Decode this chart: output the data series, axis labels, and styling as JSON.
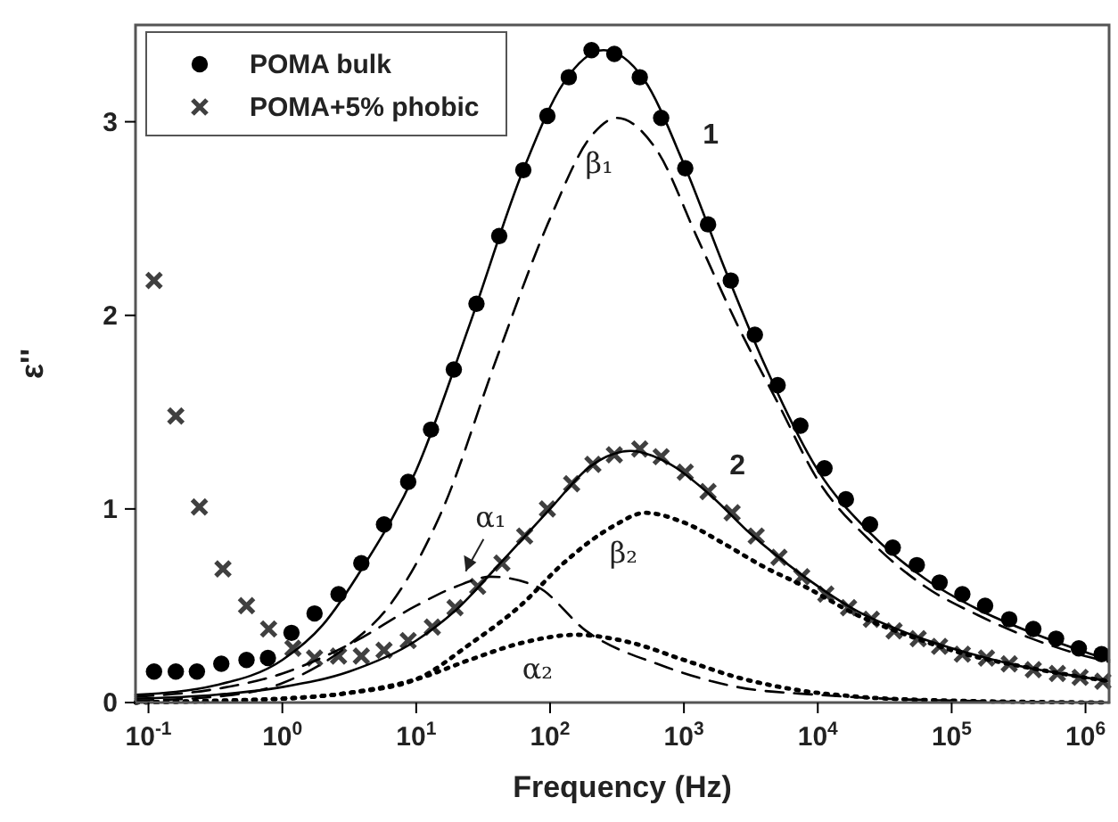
{
  "chart_data": {
    "type": "scatter",
    "xlabel": "Frequency (Hz)",
    "ylabel": "ε''",
    "log": "x",
    "grid": false,
    "legend": "top left",
    "xlim": [
      0.08,
      1500000.0
    ],
    "ylim": [
      0,
      3.5
    ],
    "xticks": [
      {
        "value": 0.1,
        "label": "10$^{-1}$"
      },
      {
        "value": 1,
        "label": "10$^{0}$"
      },
      {
        "value": 10,
        "label": "10$^{1}$"
      },
      {
        "value": 100,
        "label": "10$^{2}$"
      },
      {
        "value": 1000,
        "label": "10$^{3}$"
      },
      {
        "value": 10000,
        "label": "10$^{4}$"
      },
      {
        "value": 100000,
        "label": "10$^{5}$"
      },
      {
        "value": 1000000,
        "label": "10$^{6}$"
      }
    ],
    "yticks": [
      0,
      1,
      2,
      3
    ],
    "series": [
      {
        "name": "POMA bulk",
        "marker": "circle",
        "color": "#000000",
        "x": [
          0.11,
          0.16,
          0.23,
          0.35,
          0.54,
          0.78,
          1.17,
          1.74,
          2.63,
          3.89,
          5.75,
          8.71,
          12.9,
          19.1,
          28.2,
          41.7,
          63.1,
          95.5,
          138,
          204,
          302,
          468,
          676,
          1023,
          1514,
          2239,
          3388,
          5012,
          7413,
          11220,
          16218,
          24547,
          36308,
          54954,
          81283,
          120226,
          177828,
          269153,
          407380,
          602560,
          891251,
          1318257
        ],
        "values": [
          0.16,
          0.16,
          0.16,
          0.2,
          0.22,
          0.23,
          0.36,
          0.46,
          0.56,
          0.72,
          0.92,
          1.14,
          1.41,
          1.72,
          2.06,
          2.41,
          2.75,
          3.03,
          3.23,
          3.37,
          3.35,
          3.23,
          3.02,
          2.76,
          2.47,
          2.18,
          1.9,
          1.64,
          1.43,
          1.21,
          1.05,
          0.92,
          0.8,
          0.71,
          0.62,
          0.56,
          0.5,
          0.43,
          0.38,
          0.33,
          0.28,
          0.25
        ]
      },
      {
        "name": "POMA+5% phobic",
        "marker": "cross",
        "color": "#404040",
        "x": [
          0.11,
          0.16,
          0.24,
          0.36,
          0.54,
          0.79,
          1.2,
          1.74,
          2.63,
          3.89,
          5.75,
          8.71,
          13.2,
          19.5,
          28.8,
          43.7,
          64.6,
          95.5,
          145,
          209,
          302,
          468,
          676,
          1023,
          1514,
          2291,
          3467,
          5129,
          7586,
          11482,
          16982,
          25119,
          37154,
          56234,
          81283,
          120226,
          182000,
          269153,
          407380,
          616595,
          912011,
          1348963
        ],
        "values": [
          2.18,
          1.48,
          1.01,
          0.69,
          0.5,
          0.38,
          0.28,
          0.23,
          0.24,
          0.24,
          0.27,
          0.32,
          0.39,
          0.49,
          0.6,
          0.72,
          0.86,
          1.0,
          1.13,
          1.23,
          1.28,
          1.31,
          1.27,
          1.19,
          1.09,
          0.98,
          0.86,
          0.75,
          0.65,
          0.56,
          0.49,
          0.43,
          0.37,
          0.33,
          0.29,
          0.25,
          0.23,
          0.2,
          0.17,
          0.15,
          0.13,
          0.11
        ]
      },
      {
        "name": "1",
        "type": "line",
        "line_style": "solid",
        "color": "#000000",
        "x": [
          0.08,
          0.32,
          1,
          2,
          4,
          10,
          25,
          63,
          126,
          251,
          501,
          1000,
          1995,
          3981,
          10000,
          25119,
          63096,
          158489,
          398107,
          1000000,
          1500000
        ],
        "values": [
          0.04,
          0.09,
          0.22,
          0.4,
          0.7,
          1.2,
          1.95,
          2.75,
          3.2,
          3.37,
          3.22,
          2.78,
          2.25,
          1.75,
          1.2,
          0.87,
          0.64,
          0.48,
          0.36,
          0.26,
          0.22
        ]
      },
      {
        "name": "2",
        "type": "line",
        "line_style": "solid",
        "color": "#000000",
        "x": [
          0.08,
          0.32,
          1,
          3.16,
          10,
          20,
          40,
          100,
          200,
          398,
          794,
          1585,
          3162,
          7943,
          19953,
          50119,
          125893,
          316228,
          794328,
          1500000
        ],
        "values": [
          0.02,
          0.04,
          0.08,
          0.16,
          0.32,
          0.48,
          0.7,
          1.0,
          1.22,
          1.3,
          1.23,
          1.07,
          0.87,
          0.65,
          0.47,
          0.35,
          0.26,
          0.19,
          0.14,
          0.11
        ]
      },
      {
        "name": "β₁",
        "type": "line",
        "line_style": "dashed",
        "color": "#000000",
        "x": [
          0.08,
          0.32,
          1,
          3.16,
          6.3,
          15.8,
          40,
          100,
          200,
          316,
          631,
          1259,
          2512,
          5012,
          10000,
          25119,
          63096,
          158489,
          398107,
          1000000,
          1500000
        ],
        "values": [
          0.01,
          0.03,
          0.1,
          0.3,
          0.5,
          1.0,
          1.78,
          2.5,
          2.92,
          3.02,
          2.85,
          2.4,
          1.95,
          1.55,
          1.15,
          0.83,
          0.6,
          0.45,
          0.33,
          0.24,
          0.21
        ]
      },
      {
        "name": "α₁",
        "type": "line",
        "line_style": "dashed",
        "color": "#000000",
        "x": [
          0.08,
          0.32,
          1,
          3.16,
          10,
          20,
          36,
          79,
          186,
          692,
          2512,
          10000,
          31623,
          100000,
          1500000
        ],
        "values": [
          0.03,
          0.07,
          0.15,
          0.3,
          0.5,
          0.6,
          0.65,
          0.6,
          0.37,
          0.19,
          0.08,
          0.04,
          0.02,
          0.01,
          0.0
        ]
      },
      {
        "name": "β₂",
        "type": "line",
        "line_style": "dotted",
        "color": "#000000",
        "x": [
          0.08,
          0.32,
          1,
          3.16,
          10,
          25,
          60,
          126,
          295,
          513,
          1000,
          1995,
          3981,
          7943,
          19953,
          50119,
          125893,
          316228,
          794328,
          1500000
        ],
        "values": [
          0.0,
          0.01,
          0.02,
          0.05,
          0.12,
          0.3,
          0.5,
          0.72,
          0.91,
          0.98,
          0.93,
          0.82,
          0.7,
          0.6,
          0.45,
          0.34,
          0.25,
          0.19,
          0.14,
          0.11
        ]
      },
      {
        "name": "α₂",
        "type": "line",
        "line_style": "dotted",
        "color": "#000000",
        "x": [
          0.08,
          1,
          3.16,
          10,
          25,
          63,
          158,
          398,
          1000,
          2512,
          6310,
          19953,
          100000,
          1500000
        ],
        "values": [
          0.0,
          0.02,
          0.05,
          0.12,
          0.22,
          0.31,
          0.35,
          0.31,
          0.22,
          0.13,
          0.07,
          0.03,
          0.01,
          0.0
        ]
      }
    ]
  }
}
